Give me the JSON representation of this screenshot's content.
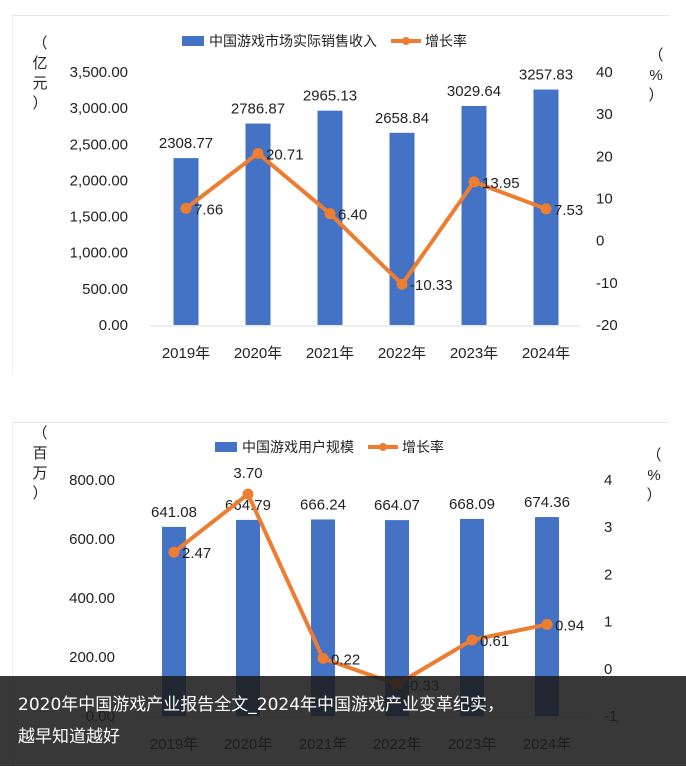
{
  "chart_data": [
    {
      "type": "bar+line",
      "categories": [
        "2019年",
        "2020年",
        "2021年",
        "2022年",
        "2023年",
        "2024年"
      ],
      "series": [
        {
          "name": "中国游戏市场实际销售收入",
          "kind": "bar",
          "axis": "left",
          "values": [
            2308.77,
            2786.87,
            2965.13,
            2658.84,
            3029.64,
            3257.83
          ],
          "labels": [
            "2308.77",
            "2786.87",
            "2965.13",
            "2658.84",
            "3029.64",
            "3257.83"
          ],
          "color": "#4472C4"
        },
        {
          "name": "增长率",
          "kind": "line",
          "axis": "right",
          "values": [
            7.66,
            20.71,
            6.4,
            -10.33,
            13.95,
            7.53
          ],
          "labels": [
            "7.66",
            "20.71",
            "6.40",
            "-10.33",
            "13.95",
            "7.53"
          ],
          "color": "#ED7D31"
        }
      ],
      "ylabel": "（亿元）",
      "y2label": "（%）",
      "ylim": [
        0,
        3500
      ],
      "yticks": [
        "0.00",
        "500.00",
        "1,000.00",
        "1,500.00",
        "2,000.00",
        "2,500.00",
        "3,000.00",
        "3,500.00"
      ],
      "y2lim": [
        -20,
        40
      ],
      "y2ticks": [
        "-20",
        "-10",
        "0",
        "10",
        "20",
        "30",
        "40"
      ],
      "legend": "top",
      "grid": false
    },
    {
      "type": "bar+line",
      "categories": [
        "2019年",
        "2020年",
        "2021年",
        "2022年",
        "2023年",
        "2024年"
      ],
      "series": [
        {
          "name": "中国游戏用户规模",
          "kind": "bar",
          "axis": "left",
          "values": [
            641.08,
            664.79,
            666.24,
            664.07,
            668.09,
            674.36
          ],
          "labels": [
            "641.08",
            "664.79",
            "666.24",
            "664.07",
            "668.09",
            "674.36"
          ],
          "color": "#4472C4"
        },
        {
          "name": "增长率",
          "kind": "line",
          "axis": "right",
          "values": [
            2.47,
            3.7,
            0.22,
            -0.33,
            0.61,
            0.94
          ],
          "labels": [
            "2.47",
            "3.70",
            "0.22",
            "-0.33",
            "0.61",
            "0.94"
          ],
          "color": "#ED7D31"
        }
      ],
      "ylabel": "（百万）",
      "y2label": "（%）",
      "ylim": [
        0,
        800
      ],
      "yticks": [
        "0.00",
        "200.00",
        "400.00",
        "600.00",
        "800.00"
      ],
      "y2lim": [
        -1,
        4
      ],
      "y2ticks": [
        "-1",
        "0",
        "1",
        "2",
        "3",
        "4"
      ],
      "legend": "top",
      "grid": false
    }
  ],
  "caption": {
    "line1": "2020年中国游戏产业报告全文_2024年中国游戏产业变革纪实，",
    "line2": "越早知道越好"
  }
}
